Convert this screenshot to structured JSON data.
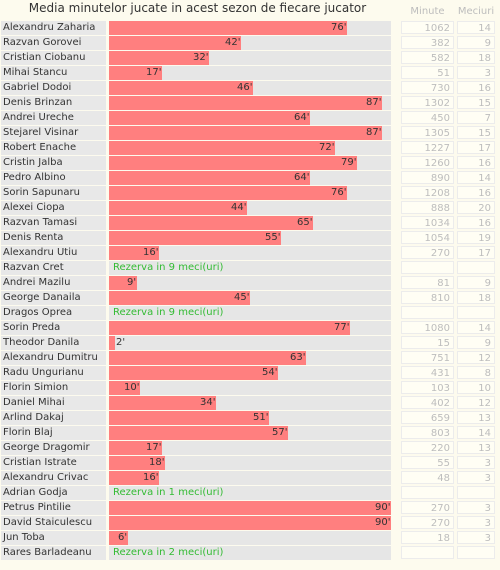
{
  "title": "Media minutelor jucate in acest sezon de fiecare jucator",
  "headers": {
    "minutes": "Minute",
    "matches": "Meciuri"
  },
  "chart_data": {
    "type": "bar",
    "orientation": "horizontal",
    "xlim": [
      0,
      90
    ],
    "value_suffix": "'",
    "rows": [
      {
        "name": "Alexandru Zaharia",
        "avg": 76,
        "minutes": "1062",
        "matches": "14"
      },
      {
        "name": "Razvan Gorovei",
        "avg": 42,
        "minutes": "382",
        "matches": "9"
      },
      {
        "name": "Cristian Ciobanu",
        "avg": 32,
        "minutes": "582",
        "matches": "18"
      },
      {
        "name": "Mihai Stancu",
        "avg": 17,
        "minutes": "51",
        "matches": "3"
      },
      {
        "name": "Gabriel Dodoi",
        "avg": 46,
        "minutes": "730",
        "matches": "16"
      },
      {
        "name": "Denis Brinzan",
        "avg": 87,
        "minutes": "1302",
        "matches": "15"
      },
      {
        "name": "Andrei Ureche",
        "avg": 64,
        "minutes": "450",
        "matches": "7"
      },
      {
        "name": "Stejarel Visinar",
        "avg": 87,
        "minutes": "1305",
        "matches": "15"
      },
      {
        "name": "Robert Enache",
        "avg": 72,
        "minutes": "1227",
        "matches": "17"
      },
      {
        "name": "Cristin Jalba",
        "avg": 79,
        "minutes": "1260",
        "matches": "16"
      },
      {
        "name": "Pedro Albino",
        "avg": 64,
        "minutes": "890",
        "matches": "14"
      },
      {
        "name": "Sorin Sapunaru",
        "avg": 76,
        "minutes": "1208",
        "matches": "16"
      },
      {
        "name": "Alexei Ciopa",
        "avg": 44,
        "minutes": "888",
        "matches": "20"
      },
      {
        "name": "Razvan Tamasi",
        "avg": 65,
        "minutes": "1034",
        "matches": "16"
      },
      {
        "name": "Denis Renta",
        "avg": 55,
        "minutes": "1054",
        "matches": "19"
      },
      {
        "name": "Alexandru Utiu",
        "avg": 16,
        "minutes": "270",
        "matches": "17"
      },
      {
        "name": "Razvan Cret",
        "avg": null,
        "reserve": "Rezerva in 9 meci(uri)",
        "minutes": "",
        "matches": ""
      },
      {
        "name": "Andrei Mazilu",
        "avg": 9,
        "minutes": "81",
        "matches": "9"
      },
      {
        "name": "George Danaila",
        "avg": 45,
        "minutes": "810",
        "matches": "18"
      },
      {
        "name": "Dragos Oprea",
        "avg": null,
        "reserve": "Rezerva in 9 meci(uri)",
        "minutes": "",
        "matches": ""
      },
      {
        "name": "Sorin Preda",
        "avg": 77,
        "minutes": "1080",
        "matches": "14"
      },
      {
        "name": "Theodor Danila",
        "avg": 2,
        "minutes": "15",
        "matches": "9"
      },
      {
        "name": "Alexandru Dumitru",
        "avg": 63,
        "minutes": "751",
        "matches": "12"
      },
      {
        "name": "Radu Ungurianu",
        "avg": 54,
        "minutes": "431",
        "matches": "8"
      },
      {
        "name": "Florin Simion",
        "avg": 10,
        "minutes": "103",
        "matches": "10"
      },
      {
        "name": "Daniel Mihai",
        "avg": 34,
        "minutes": "402",
        "matches": "12"
      },
      {
        "name": "Arlind Dakaj",
        "avg": 51,
        "minutes": "659",
        "matches": "13"
      },
      {
        "name": "Florin Blaj",
        "avg": 57,
        "minutes": "803",
        "matches": "14"
      },
      {
        "name": "George Dragomir",
        "avg": 17,
        "minutes": "220",
        "matches": "13"
      },
      {
        "name": "Cristian Istrate",
        "avg": 18,
        "minutes": "55",
        "matches": "3"
      },
      {
        "name": "Alexandru Crivac",
        "avg": 16,
        "minutes": "48",
        "matches": "3"
      },
      {
        "name": "Adrian Godja",
        "avg": null,
        "reserve": "Rezerva in 1 meci(uri)",
        "minutes": "",
        "matches": ""
      },
      {
        "name": "Petrus Pintilie",
        "avg": 90,
        "minutes": "270",
        "matches": "3"
      },
      {
        "name": "David Staiculescu",
        "avg": 90,
        "minutes": "270",
        "matches": "3"
      },
      {
        "name": "Jun Toba",
        "avg": 6,
        "minutes": "18",
        "matches": "3"
      },
      {
        "name": "Rares Barladeanu",
        "avg": null,
        "reserve": "Rezerva in 2 meci(uri)",
        "minutes": "",
        "matches": ""
      }
    ]
  }
}
